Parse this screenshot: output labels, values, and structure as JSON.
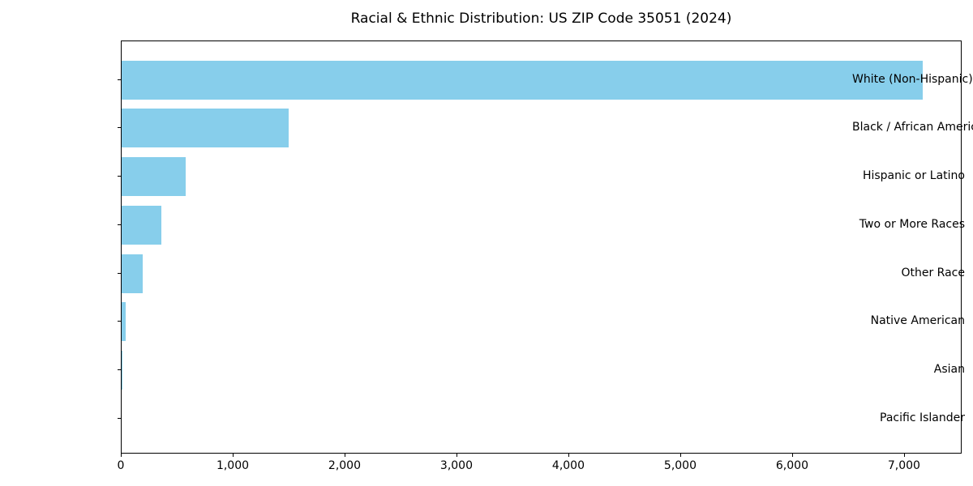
{
  "chart_data": {
    "type": "bar",
    "orientation": "horizontal",
    "title": "Racial & Ethnic Distribution: US ZIP Code 35051 (2024)",
    "categories": [
      "White (Non-Hispanic)",
      "Black / African American",
      "Hispanic or Latino",
      "Two or More Races",
      "Other Race",
      "Native American",
      "Asian",
      "Pacific Islander"
    ],
    "values": [
      7160,
      1490,
      575,
      355,
      190,
      38,
      8,
      0
    ],
    "xlabel": "",
    "ylabel": "",
    "xlim": [
      0,
      7515
    ],
    "x_ticks": [
      0,
      1000,
      2000,
      3000,
      4000,
      5000,
      6000,
      7000
    ],
    "x_tick_labels": [
      "0",
      "1,000",
      "2,000",
      "3,000",
      "4,000",
      "5,000",
      "6,000",
      "7,000"
    ],
    "bar_color": "#87CEEB",
    "text_color": "#000000",
    "grid": false,
    "legend": false,
    "largest_at_top": true
  }
}
